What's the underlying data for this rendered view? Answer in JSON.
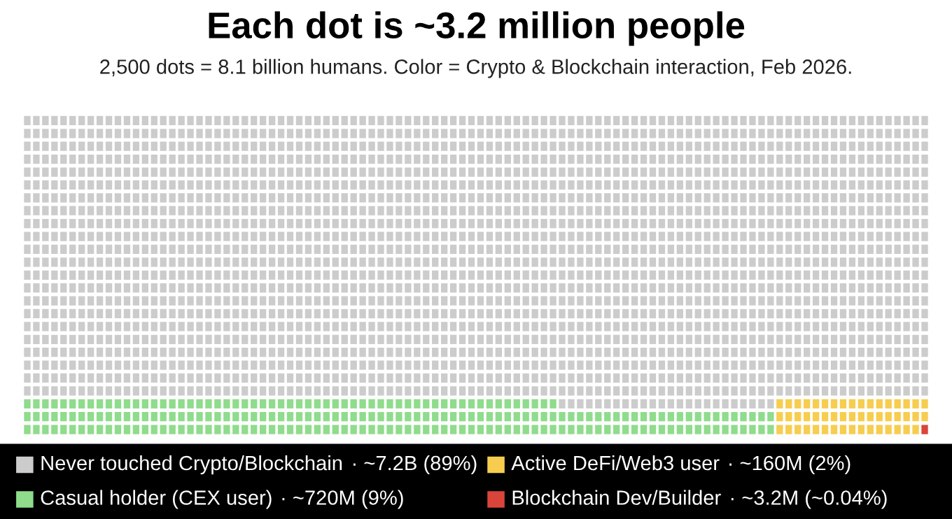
{
  "chart_data": {
    "type": "other",
    "title": "Each dot is ~3.2 million people",
    "subtitle": "2,500 dots = 8.1 billion humans. Color = Crypto & Blockchain interaction, Feb 2026.",
    "categories": [
      "Never touched Crypto/Blockchain",
      "Casual holder (CEX user)",
      "Active DeFi/Web3 user",
      "Blockchain Dev/Builder"
    ],
    "values": [
      89,
      9,
      2,
      0.04
    ],
    "value_labels": [
      "· ~7.2B (89%)",
      "· ~720M (9%)",
      "· ~160M (2%)",
      "· ~3.2M (~0.04%)"
    ],
    "colors": [
      "#cccccc",
      "#8fdc8c",
      "#f7cd4f",
      "#d9453a"
    ]
  }
}
